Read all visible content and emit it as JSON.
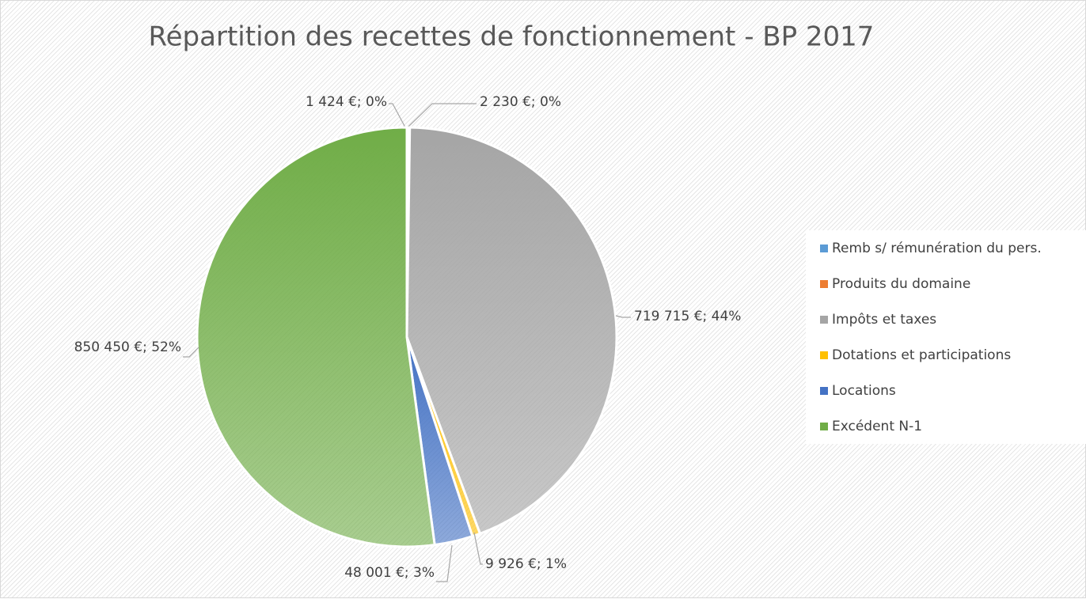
{
  "chart_data": {
    "type": "pie",
    "title": "Répartition des recettes de fonctionnement - BP 2017",
    "categories": [
      "Remb s/ rémunération du pers.",
      "Produits du domaine",
      "Impôts et taxes",
      "Dotations et participations",
      "Locations",
      "Excédent N-1"
    ],
    "values": [
      1424,
      2230,
      719715,
      9926,
      48001,
      850450
    ],
    "value_labels": [
      "1 424 €; 0%",
      "2 230 €; 0%",
      "719 715 €; 44%",
      "9 926 €; 1%",
      "48 001 €; 3%",
      "850 450 €; 52%"
    ],
    "colors": [
      "#5b9bd5",
      "#ed7d31",
      "#a5a5a5",
      "#ffc000",
      "#4472c4",
      "#70ad47"
    ],
    "legend": "right"
  }
}
